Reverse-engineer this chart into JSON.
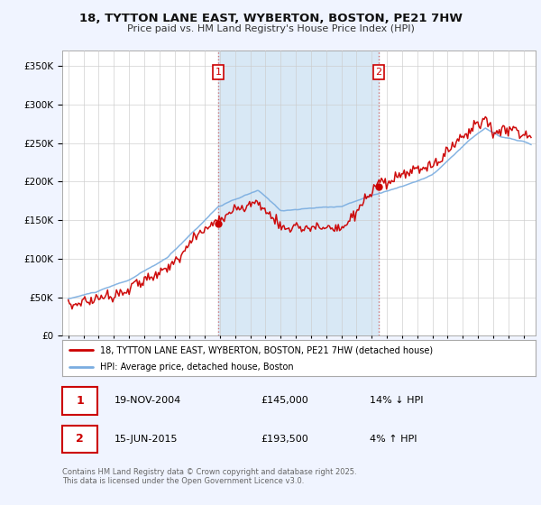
{
  "title": "18, TYTTON LANE EAST, WYBERTON, BOSTON, PE21 7HW",
  "subtitle": "Price paid vs. HM Land Registry's House Price Index (HPI)",
  "legend_label_red": "18, TYTTON LANE EAST, WYBERTON, BOSTON, PE21 7HW (detached house)",
  "legend_label_blue": "HPI: Average price, detached house, Boston",
  "marker1_date": "19-NOV-2004",
  "marker1_price": "£145,000",
  "marker1_hpi": "14% ↓ HPI",
  "marker2_date": "15-JUN-2015",
  "marker2_price": "£193,500",
  "marker2_hpi": "4% ↑ HPI",
  "footer": "Contains HM Land Registry data © Crown copyright and database right 2025.\nThis data is licensed under the Open Government Licence v3.0.",
  "red_color": "#cc0000",
  "blue_color": "#7aade0",
  "shade_color": "#d8e8f5",
  "background_color": "#f0f4ff",
  "plot_bg_color": "#ffffff",
  "ylim": [
    0,
    370000
  ],
  "yticks": [
    0,
    50000,
    100000,
    150000,
    200000,
    250000,
    300000,
    350000
  ],
  "marker1_x": 2004.89,
  "marker1_y": 145000,
  "marker2_x": 2015.45,
  "marker2_y": 193500,
  "vline1_x": 2004.89,
  "vline2_x": 2015.45,
  "xlim_left": 1994.6,
  "xlim_right": 2025.8
}
